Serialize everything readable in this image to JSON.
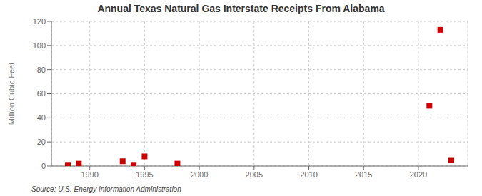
{
  "chart_data": {
    "type": "scatter",
    "title": "Annual Texas Natural Gas Interstate Receipts From Alabama",
    "ylabel": "Million Cubic Feet",
    "source": "Source: U.S. Energy Information Administration",
    "x": [
      1988,
      1989,
      1993,
      1994,
      1995,
      1998,
      2021,
      2022,
      2023
    ],
    "values": [
      1,
      2,
      4,
      1,
      8,
      2,
      50,
      113,
      5
    ],
    "color": "#cc0000",
    "marker": "square",
    "xlim": [
      1986.5,
      2024.5
    ],
    "xticks": [
      1990,
      1995,
      2000,
      2005,
      2010,
      2015,
      2020
    ],
    "ylim": [
      0,
      120
    ],
    "yticks": [
      0,
      20,
      40,
      60,
      80,
      100,
      120
    ],
    "grid": true
  }
}
